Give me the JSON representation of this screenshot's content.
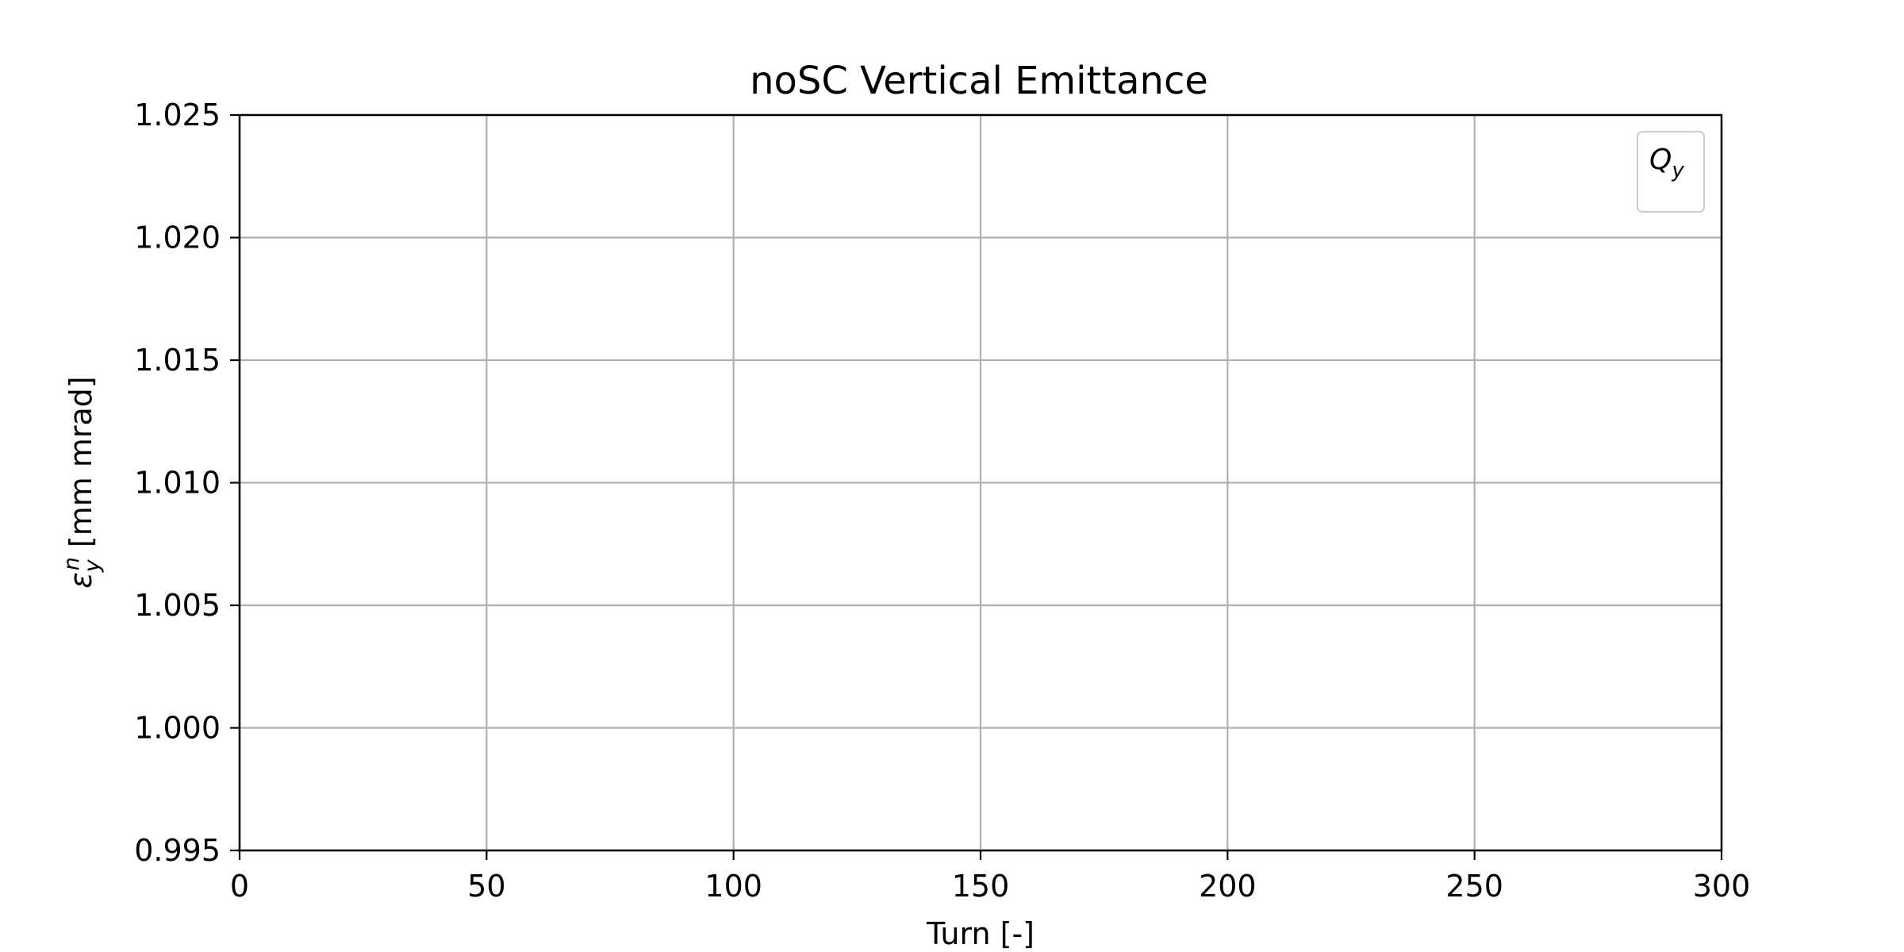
{
  "chart_data": {
    "type": "line",
    "title": "noSC Vertical Emittance",
    "xlabel": "Turn [-]",
    "ylabel": {
      "symbol": "ε",
      "sub": "y",
      "sup": "n",
      "unit": "[mm mrad]"
    },
    "xlim": [
      0,
      300
    ],
    "ylim": [
      0.995,
      1.025
    ],
    "xticks": [
      0,
      50,
      100,
      150,
      200,
      250,
      300
    ],
    "xtick_labels": [
      "0",
      "50",
      "100",
      "150",
      "200",
      "250",
      "300"
    ],
    "yticks": [
      0.995,
      1.0,
      1.005,
      1.01,
      1.015,
      1.02,
      1.025
    ],
    "ytick_labels": [
      "0.995",
      "1.000",
      "1.005",
      "1.010",
      "1.015",
      "1.020",
      "1.025"
    ],
    "grid": true,
    "legend": {
      "placement": "top-right",
      "title": {
        "main": "Q",
        "sub": "y"
      },
      "entries": []
    },
    "series": []
  },
  "colors": {
    "grid": "#b0b0b0",
    "axes": "#000000",
    "legend_border": "#cccccc"
  }
}
